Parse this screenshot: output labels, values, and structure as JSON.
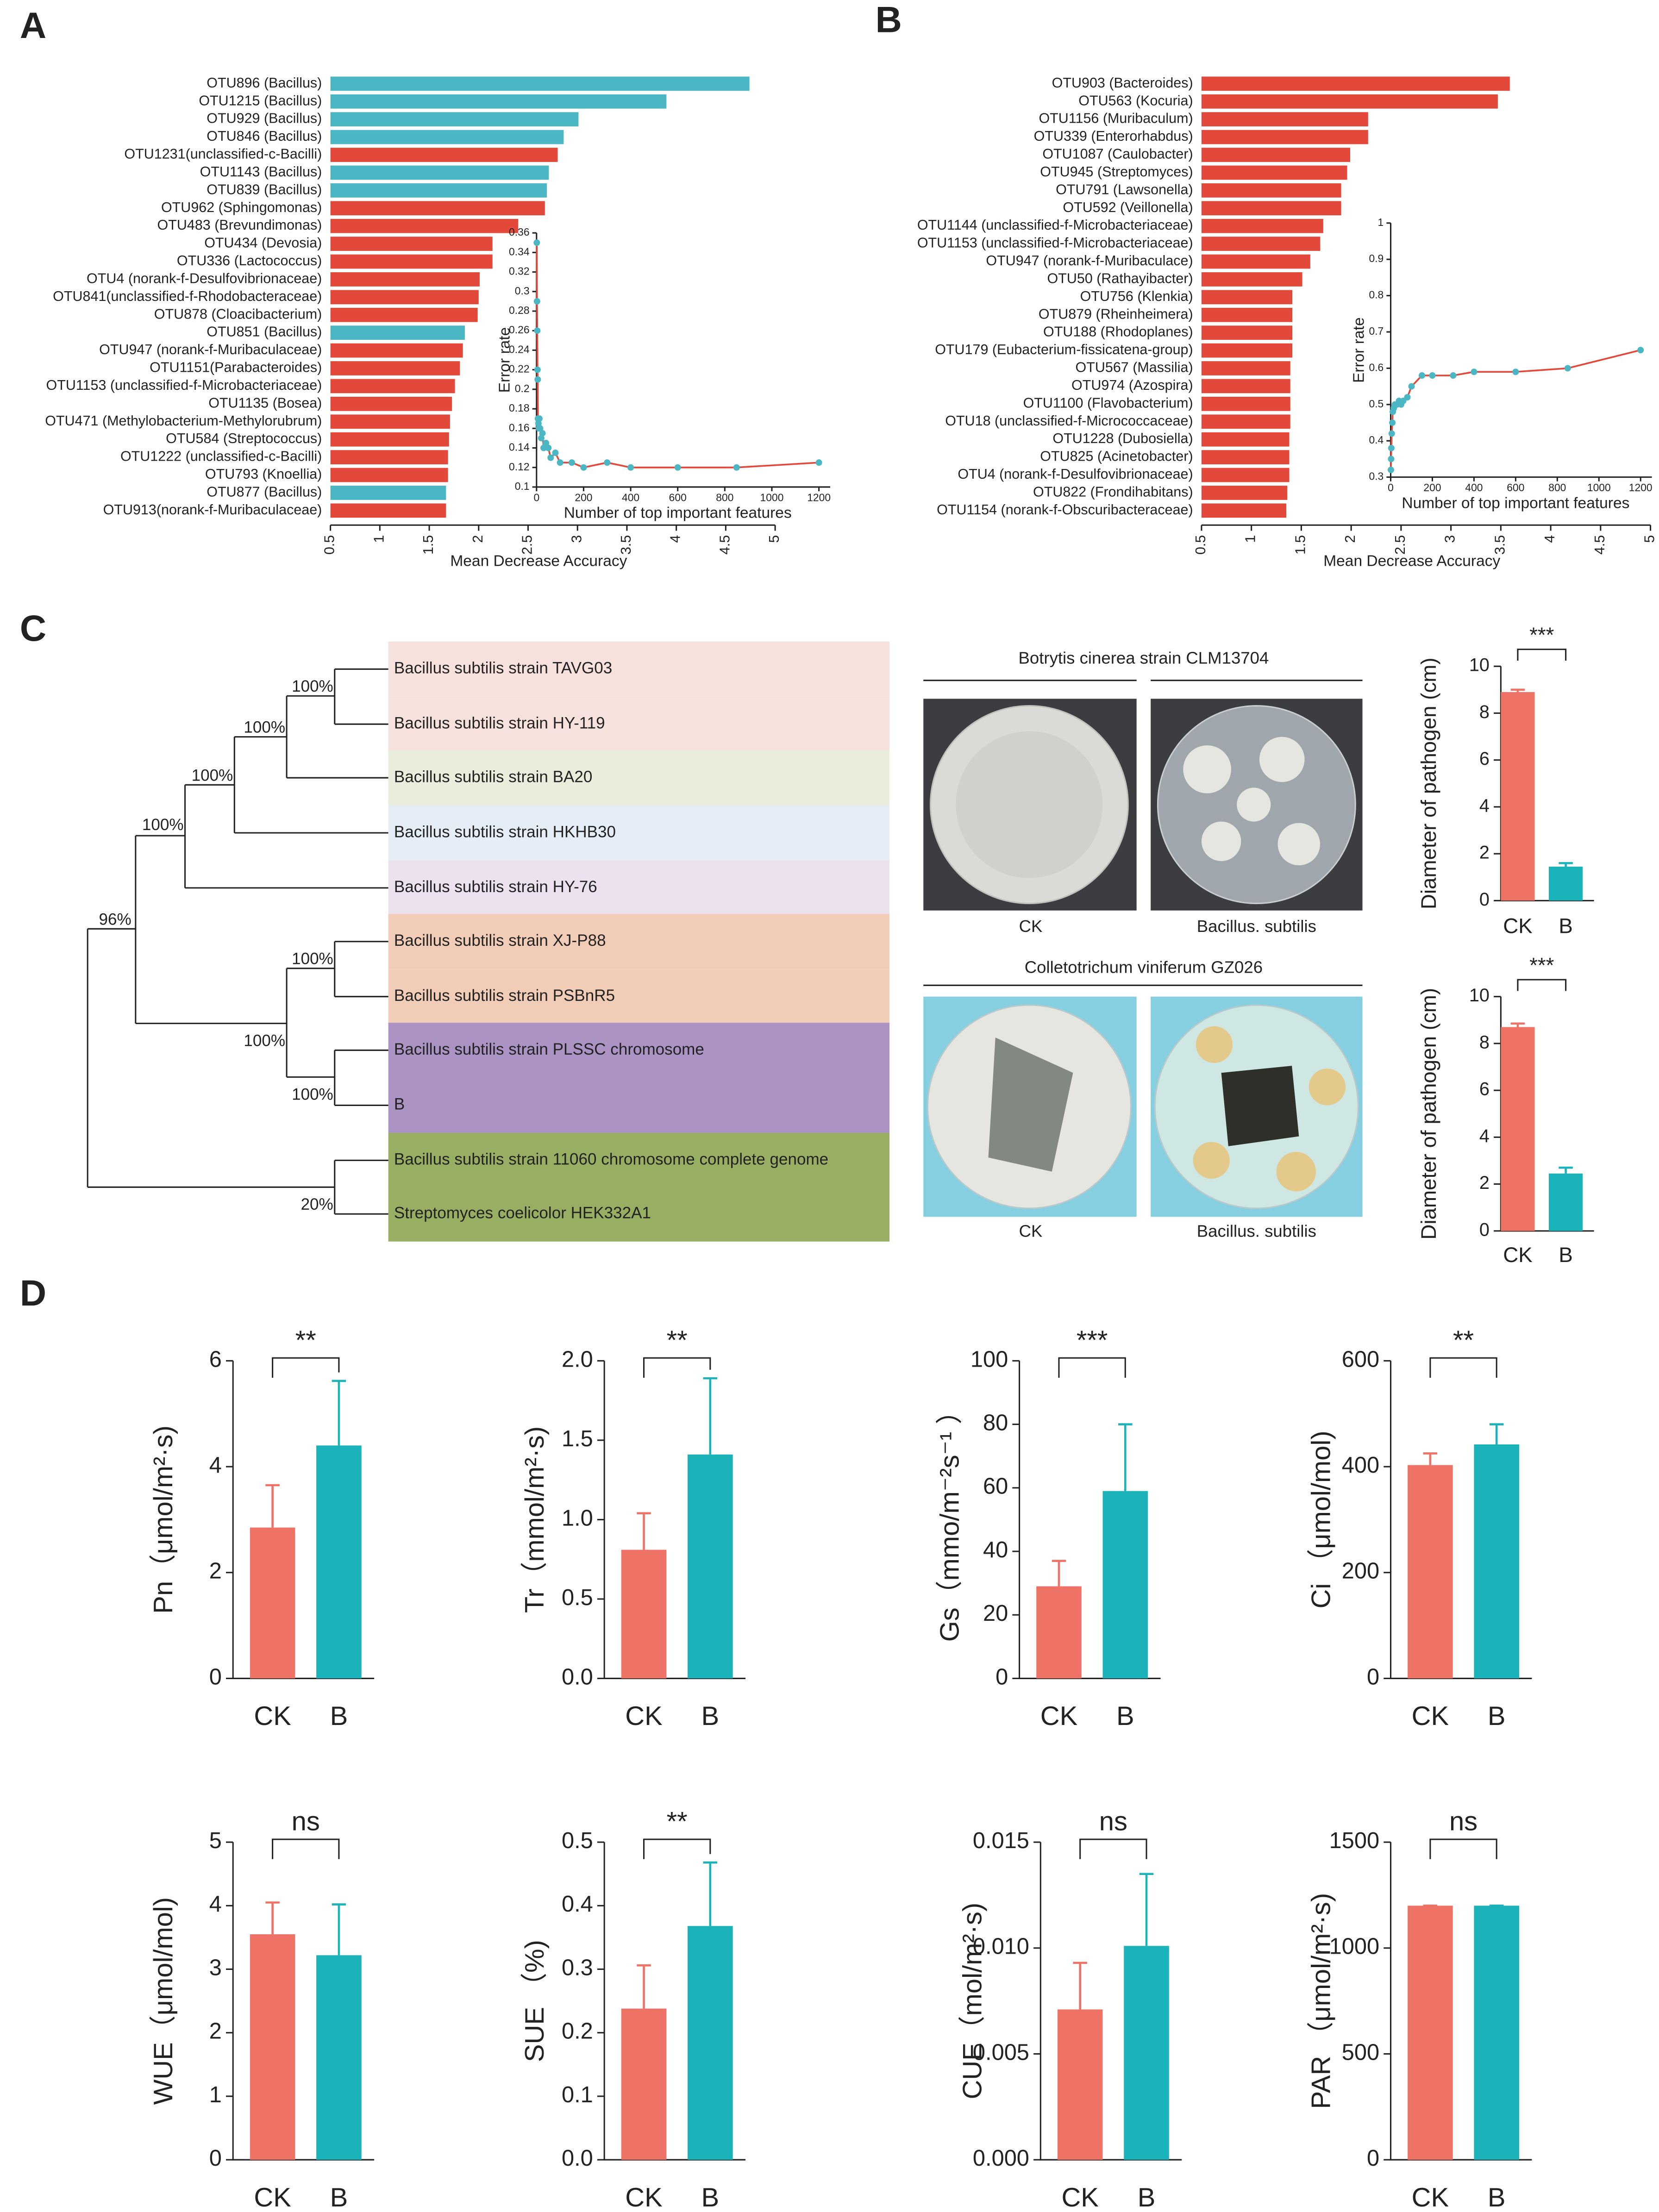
{
  "panel_labels": [
    "A",
    "B",
    "C",
    "D"
  ],
  "tree": {
    "leaves": [
      "Bacillus subtilis strain TAVG03",
      "Bacillus subtilis strain HY-119",
      "Bacillus subtilis strain BA20",
      "Bacillus subtilis strain HKHB30",
      "Bacillus subtilis strain HY-76",
      "Bacillus subtilis strain XJ-P88",
      "Bacillus subtilis strain PSBnR5",
      "Bacillus subtilis strain PLSSC chromosome",
      "B",
      "Bacillus subtilis strain 11060 chromosome complete genome",
      "Streptomyces coelicolor HEK332A1"
    ],
    "support": [
      "100%",
      "100%",
      "100%",
      "100%",
      "96%",
      "100%",
      "100%",
      "100%",
      "20%"
    ]
  },
  "photos": {
    "rows": [
      {
        "title": "Botrytis cinerea strain CLM13704",
        "captions": [
          "CK",
          "Bacillus. subtilis"
        ]
      },
      {
        "title": "Colletotrichum viniferum GZ026",
        "captions": [
          "CK",
          "Bacillus. subtilis"
        ]
      }
    ]
  },
  "chart_data": [
    {
      "type": "hbar",
      "xlabel": "Mean Decrease Accuracy",
      "categories": [
        "OTU896 (Bacillus)",
        "OTU1215 (Bacillus)",
        "OTU929 (Bacillus)",
        "OTU846 (Bacillus)",
        "OTU1231(unclassified-c-Bacilli)",
        "OTU1143 (Bacillus)",
        "OTU839 (Bacillus)",
        "OTU962 (Sphingomonas)",
        "OTU483 (Brevundimonas)",
        "OTU434 (Devosia)",
        "OTU336 (Lactococcus)",
        "OTU4 (norank-f-Desulfovibrionaceae)",
        "OTU841(unclassified-f-Rhodobacteraceae)",
        "OTU878 (Cloacibacterium)",
        "OTU851 (Bacillus)",
        "OTU947 (norank-f-Muribaculaceae)",
        "OTU1151(Parabacteroides)",
        "OTU1153 (unclassified-f-Microbacteriaceae)",
        "OTU1135 (Bosea)",
        "OTU471 (Methylobacterium-Methylorubrum)",
        "OTU584 (Streptococcus)",
        "OTU1222 (unclassified-c-Bacilli)",
        "OTU793 (Knoellia)",
        "OTU877 (Bacillus)",
        "OTU913(norank-f-Muribaculaceae)"
      ],
      "values": [
        4.74,
        3.9,
        3.01,
        2.86,
        2.8,
        2.71,
        2.69,
        2.67,
        2.4,
        2.14,
        2.14,
        2.01,
        2.0,
        1.99,
        1.86,
        1.84,
        1.81,
        1.76,
        1.73,
        1.71,
        1.7,
        1.69,
        1.69,
        1.67,
        1.67
      ],
      "colors": [
        "#4bb6c4",
        "#4bb6c4",
        "#4bb6c4",
        "#4bb6c4",
        "#e2493a",
        "#4bb6c4",
        "#4bb6c4",
        "#e2493a",
        "#e2493a",
        "#e2493a",
        "#e2493a",
        "#e2493a",
        "#e2493a",
        "#e2493a",
        "#4bb6c4",
        "#e2493a",
        "#e2493a",
        "#e2493a",
        "#e2493a",
        "#e2493a",
        "#e2493a",
        "#e2493a",
        "#e2493a",
        "#4bb6c4",
        "#e2493a"
      ],
      "xlim": [
        0.5,
        5
      ],
      "xticks": [
        0.5,
        1,
        1.5,
        2,
        2.5,
        3,
        3.5,
        4,
        4.5,
        5
      ]
    },
    {
      "type": "line",
      "xlabel": "Number of top important features",
      "ylabel": "Error rate",
      "color": "#e2493a",
      "marker_color": "#4bb6c4",
      "x": [
        1,
        2,
        3,
        4,
        5,
        6,
        8,
        10,
        12,
        15,
        20,
        25,
        30,
        40,
        50,
        60,
        80,
        100,
        150,
        200,
        300,
        400,
        600,
        850,
        1200
      ],
      "values": [
        0.35,
        0.29,
        0.26,
        0.22,
        0.21,
        0.17,
        0.165,
        0.16,
        0.17,
        0.16,
        0.15,
        0.155,
        0.14,
        0.145,
        0.14,
        0.13,
        0.135,
        0.125,
        0.125,
        0.12,
        0.125,
        0.12,
        0.12,
        0.12,
        0.125
      ],
      "xlim": [
        0,
        1200
      ],
      "xticks": [
        0,
        200,
        400,
        600,
        800,
        1000,
        1200
      ],
      "ylim": [
        0.1,
        0.36
      ],
      "yticks": [
        0.1,
        0.12,
        0.14,
        0.16,
        0.18,
        0.2,
        0.22,
        0.24,
        0.26,
        0.28,
        0.3,
        0.32,
        0.34,
        0.36
      ]
    },
    {
      "type": "hbar",
      "xlabel": "Mean Decrease Accuracy",
      "categories": [
        "OTU903 (Bacteroides)",
        "OTU563 (Kocuria)",
        "OTU1156 (Muribaculum)",
        "OTU339 (Enterorhabdus)",
        "OTU1087 (Caulobacter)",
        "OTU945 (Streptomyces)",
        "OTU791 (Lawsonella)",
        "OTU592 (Veillonella)",
        "OTU1144 (unclassified-f-Microbacteriaceae)",
        "OTU1153 (unclassified-f-Microbacteriaceae)",
        "OTU947 (norank-f-Muribaculace)",
        "OTU50 (Rathayibacter)",
        "OTU756 (Klenkia)",
        "OTU879 (Rheinheimera)",
        "OTU188 (Rhodoplanes)",
        "OTU179  (Eubacterium-fissicatena-group)",
        "OTU567 (Massilia)",
        "OTU974 (Azospira)",
        "OTU1100 (Flavobacterium)",
        "OTU18 (unclassified-f-Micrococcaceae)",
        "OTU1228 (Dubosiella)",
        "OTU825 (Acinetobacter)",
        "OTU4 (norank-f-Desulfovibrionaceae)",
        "OTU822 (Frondihabitans)",
        "OTU1154 (norank-f-Obscuribacteraceae)"
      ],
      "values": [
        3.59,
        3.47,
        2.17,
        2.17,
        1.99,
        1.96,
        1.9,
        1.9,
        1.72,
        1.69,
        1.59,
        1.51,
        1.41,
        1.41,
        1.41,
        1.41,
        1.39,
        1.39,
        1.39,
        1.39,
        1.38,
        1.38,
        1.38,
        1.36,
        1.35
      ],
      "colors": [
        "#e2493a",
        "#e2493a",
        "#e2493a",
        "#e2493a",
        "#e2493a",
        "#e2493a",
        "#e2493a",
        "#e2493a",
        "#e2493a",
        "#e2493a",
        "#e2493a",
        "#e2493a",
        "#e2493a",
        "#e2493a",
        "#e2493a",
        "#e2493a",
        "#e2493a",
        "#e2493a",
        "#e2493a",
        "#e2493a",
        "#e2493a",
        "#e2493a",
        "#e2493a",
        "#e2493a",
        "#e2493a"
      ],
      "xlim": [
        0.5,
        5
      ],
      "xticks": [
        0.5,
        1,
        1.5,
        2,
        2.5,
        3,
        3.5,
        4,
        4.5,
        5
      ]
    },
    {
      "type": "line",
      "xlabel": "Number of top important features",
      "ylabel": "Error rate",
      "color": "#e2493a",
      "marker_color": "#4bb6c4",
      "x": [
        1,
        2,
        3,
        5,
        8,
        10,
        15,
        20,
        30,
        40,
        50,
        60,
        80,
        100,
        150,
        200,
        300,
        400,
        600,
        850,
        1200
      ],
      "values": [
        0.32,
        0.35,
        0.38,
        0.42,
        0.45,
        0.48,
        0.49,
        0.5,
        0.5,
        0.51,
        0.5,
        0.51,
        0.52,
        0.55,
        0.58,
        0.58,
        0.58,
        0.59,
        0.59,
        0.6,
        0.65
      ],
      "xlim": [
        0,
        1200
      ],
      "xticks": [
        0,
        200,
        400,
        600,
        800,
        1000,
        1200
      ],
      "ylim": [
        0.3,
        1
      ],
      "yticks": [
        0.3,
        0.4,
        0.5,
        0.6,
        0.7,
        0.8,
        0.9,
        1
      ]
    },
    {
      "type": "bar",
      "ylabel": "Diameter of pathogen (cm)",
      "categories": [
        "CK",
        "B"
      ],
      "values": [
        8.9,
        1.45
      ],
      "errors": [
        0.1,
        0.15
      ],
      "colors": [
        "#ee7266",
        "#1bb3b9"
      ],
      "ylim": [
        0,
        10
      ],
      "yticks": [
        0,
        2,
        4,
        6,
        8,
        10
      ],
      "significance": "***"
    },
    {
      "type": "bar",
      "ylabel": "Diameter of pathogen (cm)",
      "categories": [
        "CK",
        "B"
      ],
      "values": [
        8.7,
        2.45
      ],
      "errors": [
        0.15,
        0.25
      ],
      "colors": [
        "#ee7266",
        "#1bb3b9"
      ],
      "ylim": [
        0,
        10
      ],
      "yticks": [
        0,
        2,
        4,
        6,
        8,
        10
      ],
      "significance": "***"
    },
    {
      "type": "bar",
      "ylabel": "Pn（μmol/m²·s)",
      "categories": [
        "CK",
        "B"
      ],
      "values": [
        2.85,
        4.4
      ],
      "errors": [
        0.8,
        1.22
      ],
      "colors": [
        "#ee7266",
        "#1bb3b9"
      ],
      "ylim": [
        0,
        6
      ],
      "yticks": [
        0,
        2,
        4,
        6
      ],
      "significance": "**"
    },
    {
      "type": "bar",
      "ylabel": "Tr（mmol/m²·s)",
      "categories": [
        "CK",
        "B"
      ],
      "values": [
        0.81,
        1.41
      ],
      "errors": [
        0.23,
        0.48
      ],
      "colors": [
        "#ee7266",
        "#1bb3b9"
      ],
      "ylim": [
        0,
        2
      ],
      "yticks": [
        {
          "value": 0,
          "label": "0.0"
        },
        0.5,
        {
          "value": 1,
          "label": "1.0"
        },
        1.5,
        {
          "value": 2,
          "label": "2.0"
        }
      ],
      "significance": "**"
    },
    {
      "type": "bar",
      "ylabel": "Gs（mmo/m⁻²s⁻¹ ）",
      "categories": [
        "CK",
        "B"
      ],
      "values": [
        29,
        59
      ],
      "errors": [
        8,
        21
      ],
      "colors": [
        "#ee7266",
        "#1bb3b9"
      ],
      "ylim": [
        0,
        100
      ],
      "yticks": [
        0,
        20,
        40,
        60,
        80,
        100
      ],
      "significance": "***"
    },
    {
      "type": "bar",
      "ylabel": "Ci （μmol/mol)",
      "categories": [
        "CK",
        "B"
      ],
      "values": [
        403,
        442
      ],
      "errors": [
        22,
        38
      ],
      "colors": [
        "#ee7266",
        "#1bb3b9"
      ],
      "ylim": [
        0,
        600
      ],
      "yticks": [
        0,
        200,
        400,
        600
      ],
      "significance": "**"
    },
    {
      "type": "bar",
      "ylabel": "WUE（μmol/mol)",
      "categories": [
        "CK",
        "B"
      ],
      "values": [
        3.55,
        3.22
      ],
      "errors": [
        0.5,
        0.8
      ],
      "colors": [
        "#ee7266",
        "#1bb3b9"
      ],
      "ylim": [
        0,
        5
      ],
      "yticks": [
        0,
        1,
        2,
        3,
        4,
        5
      ],
      "significance": "ns"
    },
    {
      "type": "bar",
      "ylabel": "SUE （%)",
      "categories": [
        "CK",
        "B"
      ],
      "values": [
        0.238,
        0.368
      ],
      "errors": [
        0.068,
        0.1
      ],
      "colors": [
        "#ee7266",
        "#1bb3b9"
      ],
      "ylim": [
        0,
        0.5
      ],
      "yticks": [
        {
          "value": 0,
          "label": "0.0"
        },
        0.1,
        0.2,
        0.3,
        0.4,
        0.5
      ],
      "significance": "**"
    },
    {
      "type": "bar",
      "ylabel": "CUE（mol/m²·s)",
      "categories": [
        "CK",
        "B"
      ],
      "values": [
        0.0071,
        0.0101
      ],
      "errors": [
        0.0022,
        0.0034
      ],
      "colors": [
        "#ee7266",
        "#1bb3b9"
      ],
      "ylim": [
        0,
        0.015
      ],
      "yticks": [
        {
          "value": 0,
          "label": "0.000"
        },
        0.005,
        {
          "value": 0.01,
          "label": "0.010"
        },
        0.015
      ],
      "significance": "ns"
    },
    {
      "type": "bar",
      "ylabel": "PAR （μmol/m²·s)",
      "categories": [
        "CK",
        "B"
      ],
      "values": [
        1200,
        1200
      ],
      "errors": [
        0,
        0
      ],
      "colors": [
        "#ee7266",
        "#1bb3b9"
      ],
      "ylim": [
        0,
        1500
      ],
      "yticks": [
        0,
        500,
        1000,
        1500
      ],
      "significance": "ns"
    }
  ]
}
